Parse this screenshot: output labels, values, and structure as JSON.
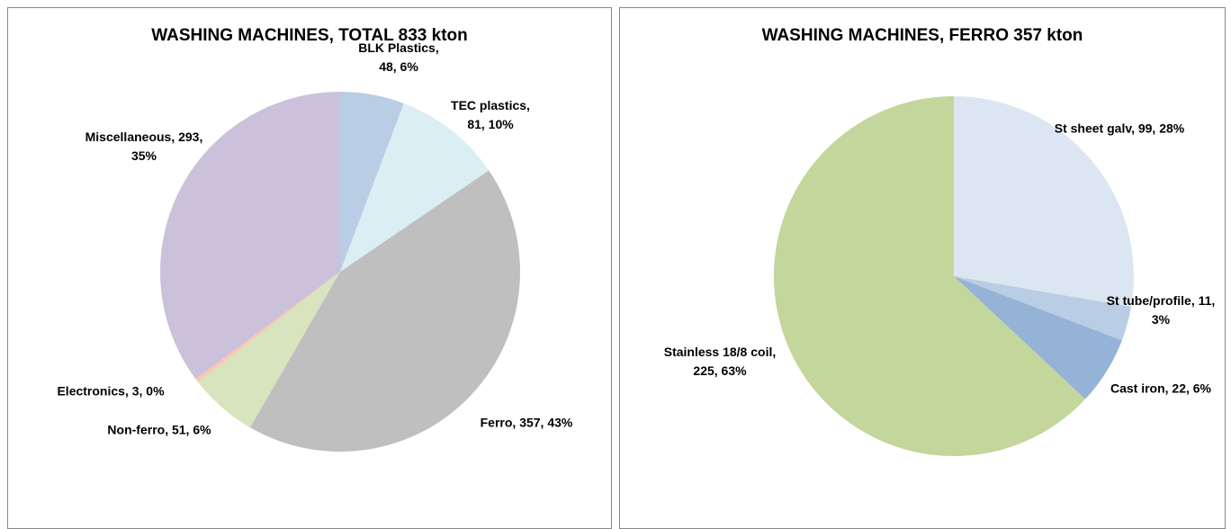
{
  "chart_data": [
    {
      "type": "pie",
      "title": "WASHING MACHINES, TOTAL 833 kton",
      "categories": [
        "BLK Plastics",
        "TEC plastics",
        "Ferro",
        "Non-ferro",
        "Electronics",
        "Miscellaneous"
      ],
      "values": [
        48,
        81,
        357,
        51,
        3,
        293
      ],
      "value_labels": [
        "BLK Plastics, 48, 6%",
        "TEC plastics, 81, 10%",
        "Ferro, 357, 43%",
        "Non-ferro, 51, 6%",
        "Electronics, 3, 0%",
        "Miscellaneous, 293, 35%"
      ],
      "colors": [
        "#b9cde5",
        "#dbeef4",
        "#bfbfbf",
        "#d7e4bd",
        "#f9c8b0",
        "#ccc1da"
      ]
    },
    {
      "type": "pie",
      "title": "WASHING MACHINES, FERRO 357 kton",
      "categories": [
        "St sheet galv",
        "St tube/profile",
        "Cast iron",
        "Stainless 18/8 coil"
      ],
      "values": [
        99,
        11,
        22,
        225
      ],
      "value_labels": [
        "St sheet galv, 99, 28%",
        "St tube/profile, 11, 3%",
        "Cast iron, 22, 6%",
        "Stainless 18/8 coil, 225, 63%"
      ],
      "colors": [
        "#dce6f2",
        "#b9cde5",
        "#95b3d7",
        "#c3d69b"
      ]
    }
  ]
}
